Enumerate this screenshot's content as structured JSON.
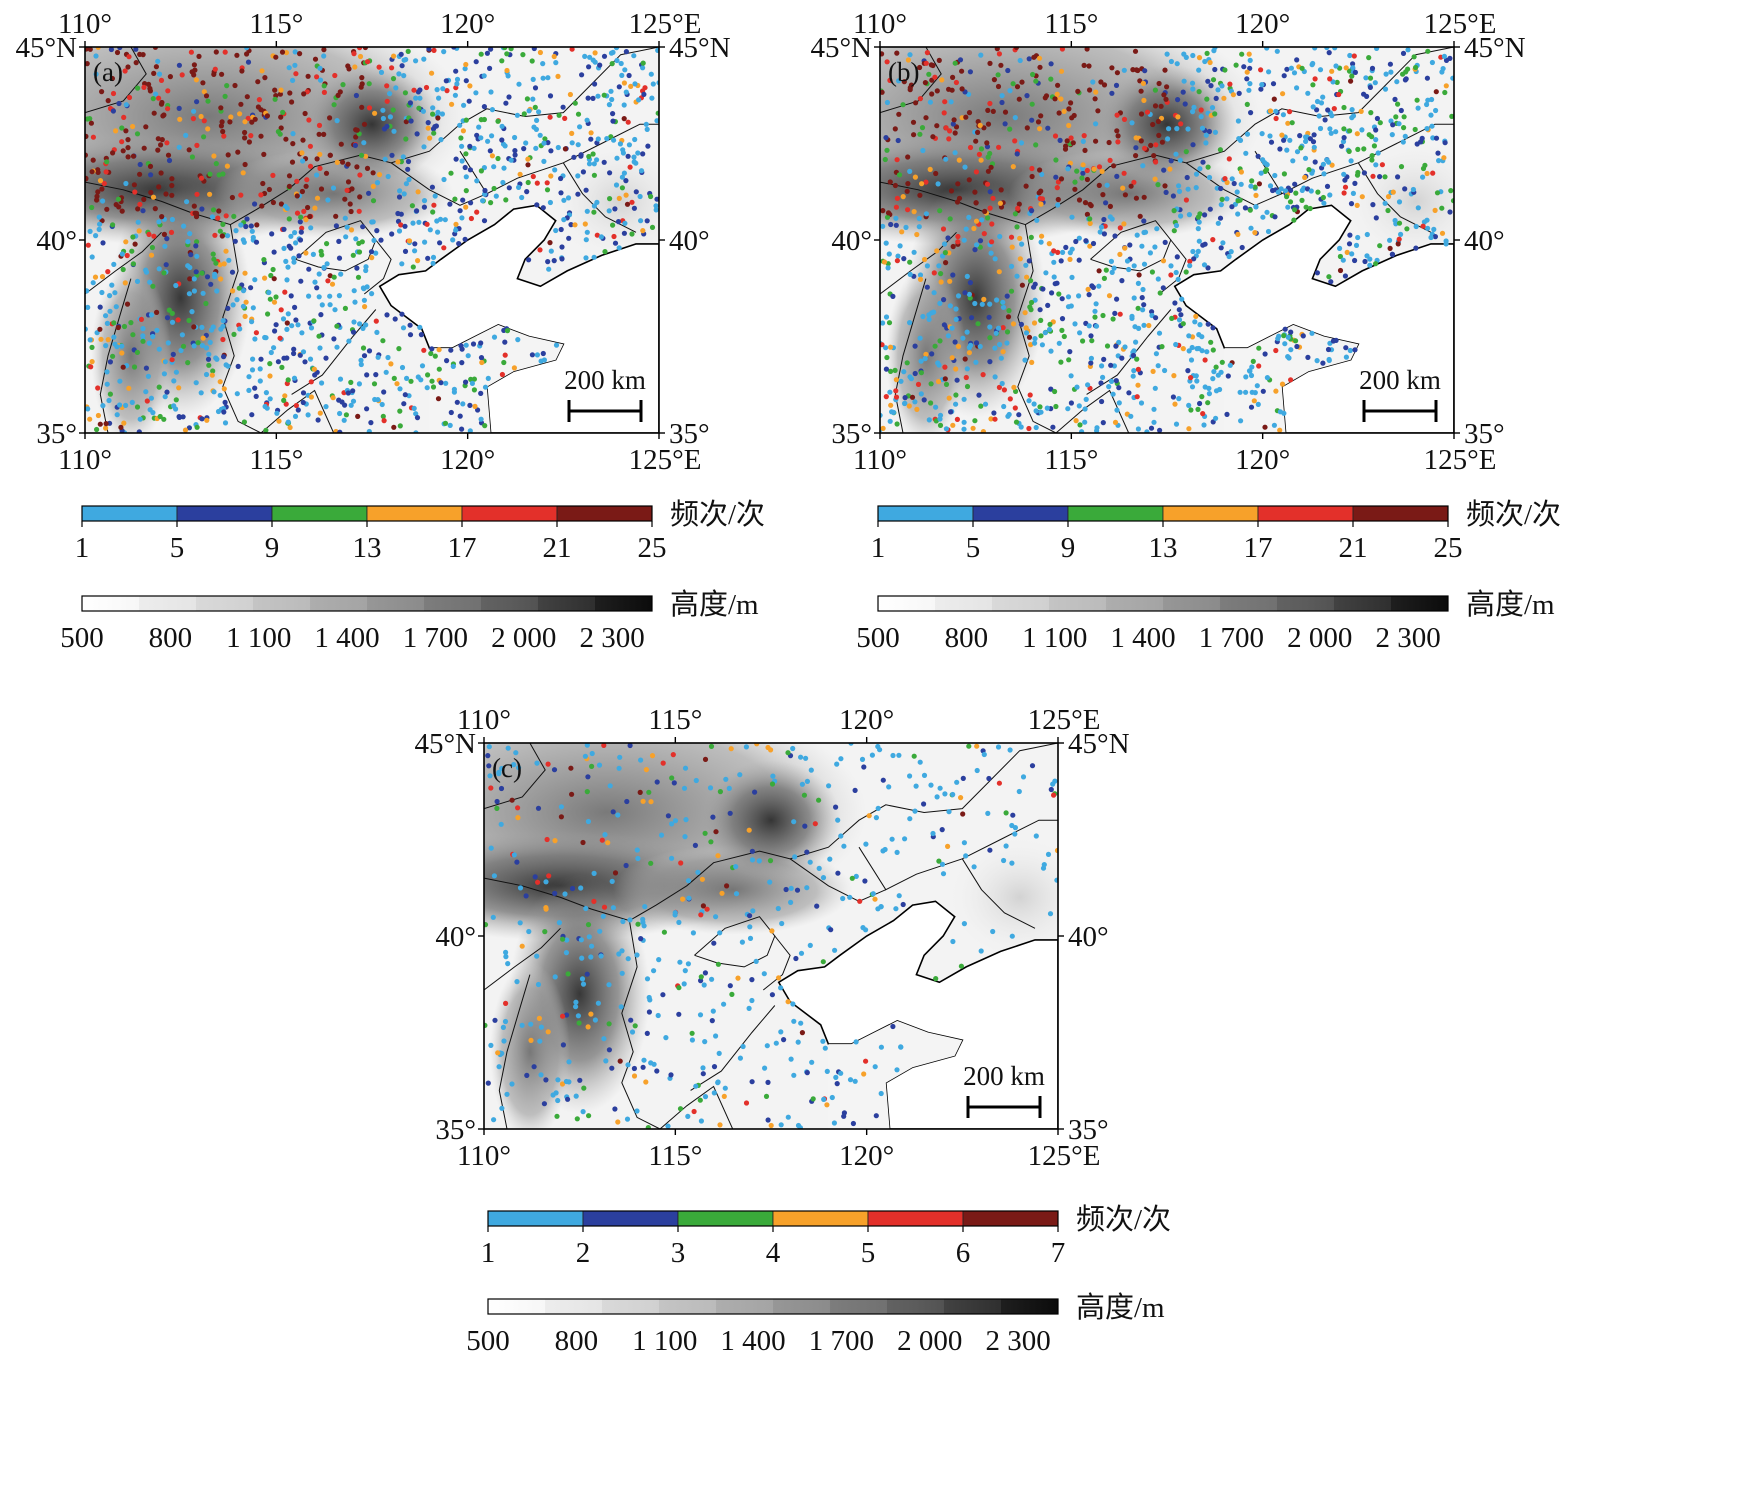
{
  "panels": [
    {
      "id": "a",
      "label": "(a)",
      "lon_ticks": [
        "110°",
        "115°",
        "120°",
        "125°E"
      ],
      "lat_ticks": [
        "35°",
        "40°",
        "45°N"
      ],
      "scale_bar": "200 km",
      "frequency_colorbar": {
        "title": "频次/次",
        "ticks": [
          "1",
          "5",
          "9",
          "13",
          "17",
          "21",
          "25"
        ]
      },
      "elevation_colorbar": {
        "title": "高度/m",
        "ticks": [
          "500",
          "800",
          "1 100",
          "1 400",
          "1 700",
          "2 000",
          "2 300"
        ]
      },
      "station_density": "high"
    },
    {
      "id": "b",
      "label": "(b)",
      "lon_ticks": [
        "110°",
        "115°",
        "120°",
        "125°E"
      ],
      "lat_ticks": [
        "35°",
        "40°",
        "45°N"
      ],
      "scale_bar": "200 km",
      "frequency_colorbar": {
        "title": "频次/次",
        "ticks": [
          "1",
          "5",
          "9",
          "13",
          "17",
          "21",
          "25"
        ]
      },
      "elevation_colorbar": {
        "title": "高度/m",
        "ticks": [
          "500",
          "800",
          "1 100",
          "1 400",
          "1 700",
          "2 000",
          "2 300"
        ]
      },
      "station_density": "high"
    },
    {
      "id": "c",
      "label": "(c)",
      "lon_ticks": [
        "110°",
        "115°",
        "120°",
        "125°E"
      ],
      "lat_ticks": [
        "35°",
        "40°",
        "45°N"
      ],
      "scale_bar": "200 km",
      "frequency_colorbar": {
        "title": "频次/次",
        "ticks": [
          "1",
          "2",
          "3",
          "4",
          "5",
          "6",
          "7"
        ]
      },
      "elevation_colorbar": {
        "title": "高度/m",
        "ticks": [
          "500",
          "800",
          "1 100",
          "1 400",
          "1 700",
          "2 000",
          "2 300"
        ]
      },
      "station_density": "low"
    }
  ],
  "map_extent": {
    "lon": [
      110,
      125
    ],
    "lat": [
      35,
      45
    ]
  },
  "frequency_class_colors": [
    "#3fa9e0",
    "#2b3f9e",
    "#3aaa3a",
    "#f7a12a",
    "#e3302a",
    "#7a1a16"
  ],
  "elevation_colors": [
    "#ffffff",
    "#ebebeb",
    "#d4d4d4",
    "#bcbcbc",
    "#a2a2a2",
    "#888888",
    "#6c6c6c",
    "#4e4e4e",
    "#2e2e2e",
    "#0d0d0d"
  ]
}
